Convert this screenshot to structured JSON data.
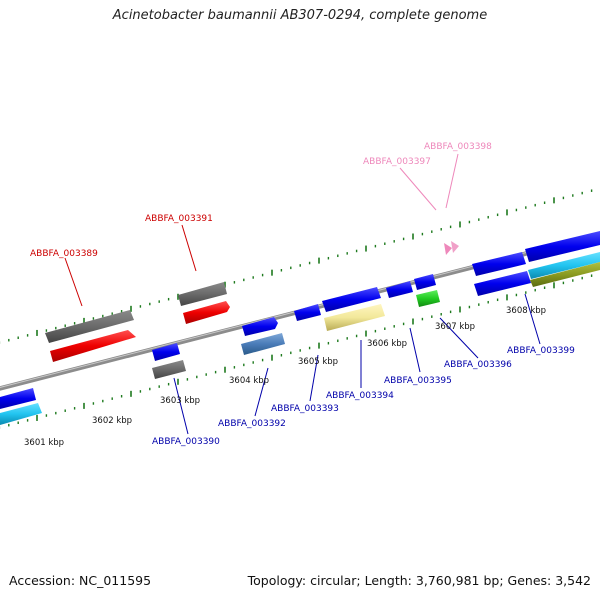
{
  "title": "Acinetobacter baumannii AB307-0294, complete genome",
  "footer": {
    "accession": "Accession: NC_011595",
    "summary": "Topology: circular; Length: 3,760,981 bp; Genes: 3,542"
  },
  "colors": {
    "backbone": "#8c8c8c",
    "tick": "#1e7a1e",
    "label_forward": "#cc0000",
    "label_reverse": "#0000aa",
    "label_pseudo": "#ee88bb"
  },
  "scale_labels": [
    "3601 kbp",
    "3602 kbp",
    "3603 kbp",
    "3604 kbp",
    "3605 kbp",
    "3606 kbp",
    "3607 kbp",
    "3608 kbp"
  ],
  "gene_labels": [
    {
      "text": "ABBFA_003389",
      "strand": "forward"
    },
    {
      "text": "ABBFA_003391",
      "strand": "forward"
    },
    {
      "text": "ABBFA_003397",
      "strand": "pseudo"
    },
    {
      "text": "ABBFA_003398",
      "strand": "pseudo"
    },
    {
      "text": "ABBFA_003390",
      "strand": "reverse"
    },
    {
      "text": "ABBFA_003392",
      "strand": "reverse"
    },
    {
      "text": "ABBFA_003393",
      "strand": "reverse"
    },
    {
      "text": "ABBFA_003394",
      "strand": "reverse"
    },
    {
      "text": "ABBFA_003395",
      "strand": "reverse"
    },
    {
      "text": "ABBFA_003396",
      "strand": "reverse"
    },
    {
      "text": "ABBFA_003399",
      "strand": "reverse"
    }
  ]
}
